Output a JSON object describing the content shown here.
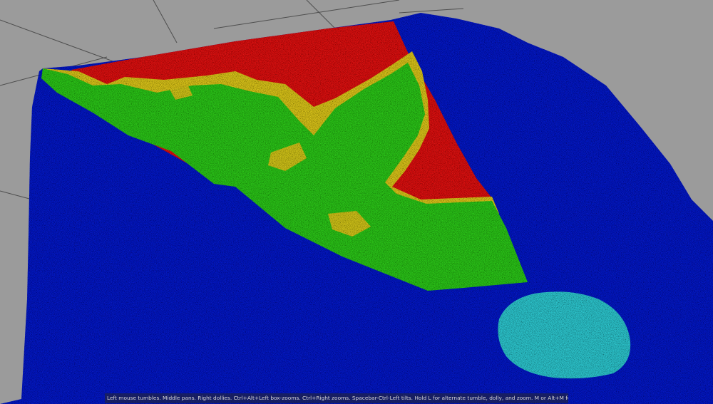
{
  "app": {
    "view": "3d-viewport"
  },
  "viewport": {
    "background_color": "#9b9b9b",
    "grid_color": "#5a5a5a",
    "point_cloud": {
      "classes": [
        {
          "id": "ground",
          "color": "#0a1fc8"
        },
        {
          "id": "high-vegetation",
          "color": "#e01212"
        },
        {
          "id": "medium-vegetation",
          "color": "#2ec81a"
        },
        {
          "id": "low-vegetation",
          "color": "#d8c21a"
        },
        {
          "id": "water",
          "color": "#2fc4cc"
        }
      ]
    }
  },
  "status_bar": {
    "help_text": "Left mouse tumbles. Middle pans. Right dollies. Ctrl+Alt+Left box-zooms. Ctrl+Right zooms. Spacebar-Ctrl-Left tilts. Hold L for alternate tumble, dolly, and zoom.     M or Alt+M for First Person Navigation."
  }
}
